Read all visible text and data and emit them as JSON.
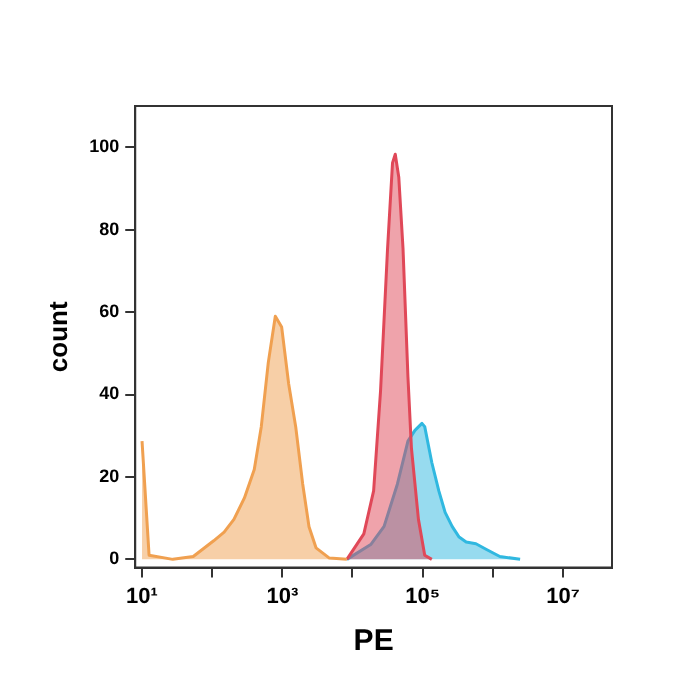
{
  "chart_data": {
    "type": "area",
    "xlabel": "PE",
    "ylabel": "count",
    "log": "x",
    "grid": false,
    "legend": false,
    "xlim": [
      8,
      50000000
    ],
    "xticks": [
      {
        "value": 10,
        "label": "10¹"
      },
      {
        "value": 100,
        "label": null
      },
      {
        "value": 1000,
        "label": "10³"
      },
      {
        "value": 10000,
        "label": null
      },
      {
        "value": 100000,
        "label": "10⁵"
      },
      {
        "value": 1000000,
        "label": null
      },
      {
        "value": 10000000,
        "label": "10⁷"
      }
    ],
    "ylim": [
      -2,
      110
    ],
    "yticks": [
      0,
      20,
      40,
      60,
      80,
      100
    ],
    "series": [
      {
        "color": "#f0a050",
        "x": [
          10,
          12.6,
          27.5,
          53.7,
          105,
          148,
          204,
          288,
          398,
          501,
          631,
          794,
          977,
          1230,
          1550,
          1950,
          2400,
          3020,
          4680,
          8320
        ],
        "values": [
          28.7,
          1,
          0,
          0.7,
          4.5,
          6.6,
          9.7,
          14.9,
          21.8,
          32.2,
          47.8,
          59,
          56.4,
          42.6,
          32.2,
          18.3,
          7.9,
          2.8,
          0.3,
          0
        ]
      },
      {
        "color": "#e04858",
        "x": [
          8320,
          14500,
          20000,
          25100,
          31600,
          37200,
          40700,
          45700,
          52500,
          61700,
          69200,
          87100,
          107000,
          135000
        ],
        "values": [
          0,
          6.2,
          16.6,
          40.8,
          75.4,
          96.2,
          98.3,
          92.7,
          75.4,
          44.3,
          27,
          9.7,
          1,
          0
        ]
      },
      {
        "color": "#30b8e0",
        "x": [
          8320,
          18200,
          28200,
          43700,
          61700,
          77600,
          97700,
          107000,
          135000,
          170000,
          209000,
          263000,
          331000,
          417000,
          575000,
          813000,
          1260000,
          2450000
        ],
        "values": [
          0,
          3.6,
          8,
          18.3,
          28.7,
          31.3,
          33,
          32.2,
          23.5,
          16.6,
          11.4,
          8,
          5.4,
          4.2,
          3.8,
          2.4,
          0.7,
          0
        ]
      }
    ]
  }
}
